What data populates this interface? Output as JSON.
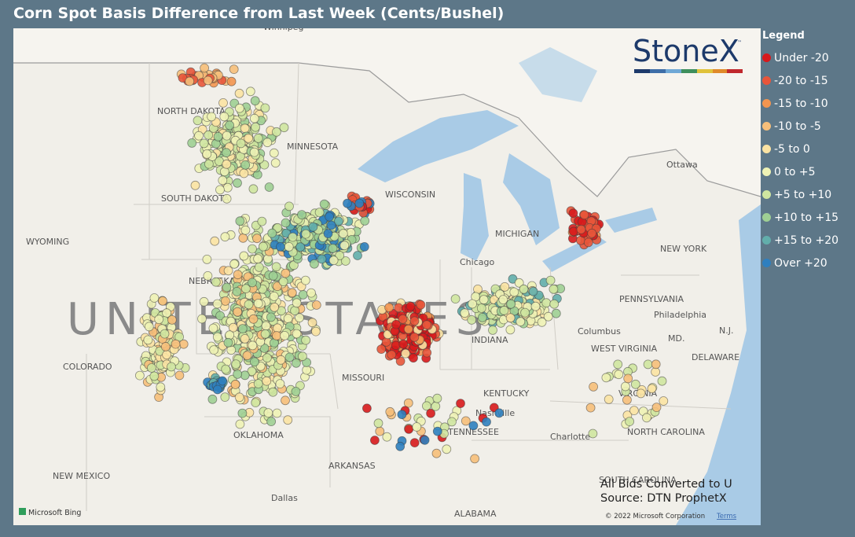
{
  "header": {
    "title": "Corn Spot Basis Difference from Last Week (Cents/Bushel)"
  },
  "legend": {
    "title": "Legend",
    "items": [
      {
        "label": "Under -20",
        "color": "#d7191c"
      },
      {
        "label": "-20 to -15",
        "color": "#e8553a"
      },
      {
        "label": "-15 to -10",
        "color": "#f3954f"
      },
      {
        "label": "-10 to -5",
        "color": "#f6bf7a"
      },
      {
        "label": "-5 to 0",
        "color": "#fbe3a3"
      },
      {
        "label": "0 to +5",
        "color": "#eef2b5"
      },
      {
        "label": "+5 to +10",
        "color": "#cfe6a0"
      },
      {
        "label": "+10 to +15",
        "color": "#9fcf94"
      },
      {
        "label": "+15 to +20",
        "color": "#62aeab"
      },
      {
        "label": "Over +20",
        "color": "#2e7fbf"
      }
    ]
  },
  "brand": {
    "logo": "StoneX",
    "mark": "™"
  },
  "map": {
    "watermark": "UNITED STATES",
    "labels": [
      "Winnipeg",
      "NORTH DAKOTA",
      "MINNESOTA",
      "SOUTH DAKOTA",
      "WYOMING",
      "WISCONSIN",
      "MICHIGAN",
      "Chicago",
      "NEBRASKA",
      "COLORADO",
      "MISSOURI",
      "INDIANA",
      "Columbus",
      "PENNSYLVANIA",
      "Philadelphia",
      "NEW YORK",
      "Ottawa",
      "MD.",
      "N.J.",
      "DELAWARE",
      "WEST VIRGINIA",
      "VIRGINIA",
      "KENTUCKY",
      "Nashville",
      "TENNESSEE",
      "Charlotte",
      "NORTH CAROLINA",
      "SOUTH CAROLINA",
      "OKLAHOMA",
      "ARKANSAS",
      "NEW MEXICO",
      "Dallas",
      "ALABAMA"
    ]
  },
  "notes": [
    "All Bids Converted to U",
    "Source: DTN ProphetX"
  ],
  "attribution": {
    "provider": "Microsoft Bing",
    "copyright": "© 2022 Microsoft Corporation",
    "terms": "Terms"
  }
}
